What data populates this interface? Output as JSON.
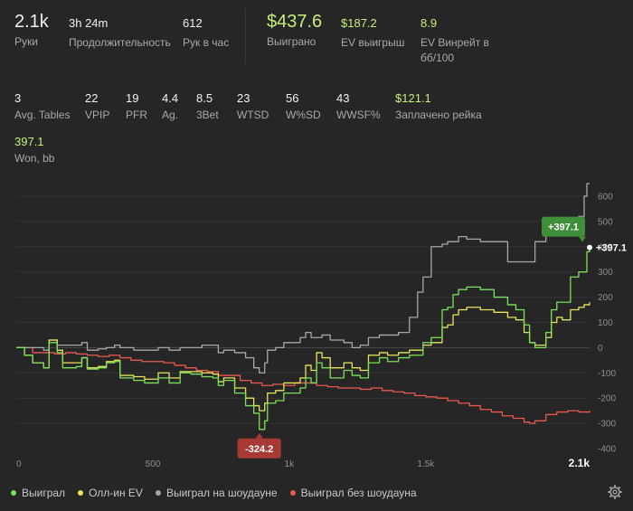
{
  "summary": {
    "hands": {
      "value": "2.1k",
      "label": "Руки"
    },
    "duration": {
      "value": "3h 24m",
      "label": "Продолжительность"
    },
    "hands_per_hour": {
      "value": "612",
      "label": "Рук в час"
    },
    "won": {
      "value": "$437.6",
      "label": "Выиграно"
    },
    "ev_won": {
      "value": "$187.2",
      "label": "EV выигрыш"
    },
    "ev_winrate": {
      "value": "8.9",
      "label": "EV Винрейт в бб/100"
    }
  },
  "stats": [
    {
      "value": "3",
      "label": "Avg. Tables"
    },
    {
      "value": "22",
      "label": "VPIP"
    },
    {
      "value": "19",
      "label": "PFR"
    },
    {
      "value": "4.4",
      "label": "Ag."
    },
    {
      "value": "8.5",
      "label": "3Bet"
    },
    {
      "value": "23",
      "label": "WTSD"
    },
    {
      "value": "56",
      "label": "W%SD"
    },
    {
      "value": "43",
      "label": "WWSF%"
    },
    {
      "value": "$121.1",
      "label": "Заплачено рейка"
    }
  ],
  "won_bb": {
    "value": "397.1",
    "label": "Won, bb"
  },
  "colors": {
    "green": "#7be05a",
    "yellow": "#e9e35c",
    "gray": "#a8a8a8",
    "red": "#e85a4f",
    "badge_green": "#3f8f3a",
    "badge_red": "#a83a36"
  },
  "chart_data": {
    "type": "line",
    "xlabel": "",
    "ylabel": "",
    "xlim": [
      0,
      2100
    ],
    "ylim": [
      -400,
      650
    ],
    "x_ticks": [
      "0",
      "500",
      "1k",
      "1.5k",
      "2.1k"
    ],
    "x_tick_values": [
      0,
      500,
      1000,
      1500,
      2100
    ],
    "y_ticks": [
      "600",
      "500",
      "400",
      "300",
      "200",
      "100",
      "0",
      "-100",
      "-200",
      "-300",
      "-400"
    ],
    "y_tick_values": [
      600,
      500,
      400,
      300,
      200,
      100,
      0,
      -100,
      -200,
      -300,
      -400
    ],
    "grid": true,
    "legend": "bottom",
    "annotations": {
      "max_label": "+397.1",
      "min_label": "-324.2",
      "end_label": "+397.1"
    },
    "series": [
      {
        "name": "Выиграл",
        "color": "green",
        "points": [
          [
            0,
            0
          ],
          [
            30,
            -30
          ],
          [
            60,
            -60
          ],
          [
            100,
            -80
          ],
          [
            120,
            20
          ],
          [
            150,
            -20
          ],
          [
            170,
            -80
          ],
          [
            220,
            -75
          ],
          [
            240,
            -40
          ],
          [
            260,
            -85
          ],
          [
            300,
            -80
          ],
          [
            330,
            -60
          ],
          [
            360,
            -55
          ],
          [
            380,
            -120
          ],
          [
            430,
            -130
          ],
          [
            470,
            -140
          ],
          [
            520,
            -120
          ],
          [
            560,
            -140
          ],
          [
            600,
            -100
          ],
          [
            640,
            -105
          ],
          [
            680,
            -115
          ],
          [
            720,
            -120
          ],
          [
            740,
            -150
          ],
          [
            760,
            -130
          ],
          [
            800,
            -180
          ],
          [
            840,
            -230
          ],
          [
            870,
            -260
          ],
          [
            890,
            -324
          ],
          [
            910,
            -290
          ],
          [
            920,
            -220
          ],
          [
            950,
            -210
          ],
          [
            980,
            -180
          ],
          [
            1040,
            -160
          ],
          [
            1060,
            -120
          ],
          [
            1080,
            -140
          ],
          [
            1100,
            -60
          ],
          [
            1120,
            -80
          ],
          [
            1150,
            -120
          ],
          [
            1200,
            -90
          ],
          [
            1230,
            -110
          ],
          [
            1260,
            -120
          ],
          [
            1290,
            -60
          ],
          [
            1330,
            -40
          ],
          [
            1360,
            -55
          ],
          [
            1400,
            -40
          ],
          [
            1440,
            -30
          ],
          [
            1470,
            -30
          ],
          [
            1490,
            20
          ],
          [
            1520,
            40
          ],
          [
            1560,
            150
          ],
          [
            1580,
            160
          ],
          [
            1600,
            210
          ],
          [
            1620,
            230
          ],
          [
            1650,
            240
          ],
          [
            1700,
            230
          ],
          [
            1750,
            200
          ],
          [
            1800,
            170
          ],
          [
            1830,
            150
          ],
          [
            1860,
            90
          ],
          [
            1880,
            20
          ],
          [
            1900,
            0
          ],
          [
            1940,
            60
          ],
          [
            1960,
            150
          ],
          [
            1980,
            180
          ],
          [
            2000,
            180
          ],
          [
            2030,
            280
          ],
          [
            2060,
            300
          ],
          [
            2080,
            300
          ],
          [
            2090,
            380
          ],
          [
            2100,
            397
          ]
        ]
      },
      {
        "name": "Олл-ин EV",
        "color": "yellow",
        "points": [
          [
            0,
            0
          ],
          [
            30,
            -30
          ],
          [
            60,
            -60
          ],
          [
            100,
            -80
          ],
          [
            120,
            30
          ],
          [
            150,
            -10
          ],
          [
            170,
            -60
          ],
          [
            220,
            -60
          ],
          [
            240,
            -40
          ],
          [
            260,
            -80
          ],
          [
            300,
            -75
          ],
          [
            330,
            -55
          ],
          [
            360,
            -50
          ],
          [
            380,
            -110
          ],
          [
            430,
            -115
          ],
          [
            470,
            -125
          ],
          [
            520,
            -100
          ],
          [
            560,
            -120
          ],
          [
            600,
            -95
          ],
          [
            640,
            -95
          ],
          [
            680,
            -100
          ],
          [
            720,
            -105
          ],
          [
            740,
            -135
          ],
          [
            760,
            -120
          ],
          [
            800,
            -160
          ],
          [
            840,
            -200
          ],
          [
            870,
            -230
          ],
          [
            890,
            -250
          ],
          [
            910,
            -220
          ],
          [
            920,
            -180
          ],
          [
            950,
            -170
          ],
          [
            980,
            -140
          ],
          [
            1040,
            -120
          ],
          [
            1060,
            -70
          ],
          [
            1080,
            -90
          ],
          [
            1100,
            -20
          ],
          [
            1120,
            -40
          ],
          [
            1150,
            -80
          ],
          [
            1200,
            -60
          ],
          [
            1230,
            -80
          ],
          [
            1260,
            -90
          ],
          [
            1290,
            -30
          ],
          [
            1330,
            -20
          ],
          [
            1360,
            -30
          ],
          [
            1400,
            -20
          ],
          [
            1440,
            -10
          ],
          [
            1470,
            -10
          ],
          [
            1490,
            10
          ],
          [
            1520,
            20
          ],
          [
            1560,
            80
          ],
          [
            1580,
            90
          ],
          [
            1600,
            130
          ],
          [
            1620,
            150
          ],
          [
            1650,
            160
          ],
          [
            1700,
            150
          ],
          [
            1750,
            140
          ],
          [
            1800,
            120
          ],
          [
            1830,
            110
          ],
          [
            1860,
            60
          ],
          [
            1880,
            20
          ],
          [
            1900,
            10
          ],
          [
            1940,
            40
          ],
          [
            1960,
            100
          ],
          [
            1980,
            120
          ],
          [
            2000,
            110
          ],
          [
            2030,
            150
          ],
          [
            2060,
            160
          ],
          [
            2080,
            170
          ],
          [
            2100,
            180
          ]
        ]
      },
      {
        "name": "Выиграл на шоудауне",
        "color": "gray",
        "points": [
          [
            0,
            0
          ],
          [
            30,
            0
          ],
          [
            60,
            0
          ],
          [
            100,
            -10
          ],
          [
            120,
            30
          ],
          [
            150,
            10
          ],
          [
            170,
            10
          ],
          [
            220,
            10
          ],
          [
            240,
            20
          ],
          [
            260,
            -10
          ],
          [
            300,
            -5
          ],
          [
            330,
            0
          ],
          [
            360,
            10
          ],
          [
            380,
            0
          ],
          [
            430,
            -10
          ],
          [
            470,
            -10
          ],
          [
            520,
            0
          ],
          [
            560,
            -10
          ],
          [
            600,
            0
          ],
          [
            640,
            0
          ],
          [
            680,
            10
          ],
          [
            720,
            10
          ],
          [
            740,
            -20
          ],
          [
            760,
            -10
          ],
          [
            800,
            -20
          ],
          [
            840,
            -40
          ],
          [
            870,
            -80
          ],
          [
            890,
            -100
          ],
          [
            910,
            -60
          ],
          [
            920,
            -10
          ],
          [
            950,
            0
          ],
          [
            980,
            20
          ],
          [
            1040,
            40
          ],
          [
            1060,
            60
          ],
          [
            1080,
            40
          ],
          [
            1100,
            40
          ],
          [
            1120,
            50
          ],
          [
            1150,
            30
          ],
          [
            1200,
            20
          ],
          [
            1230,
            0
          ],
          [
            1260,
            10
          ],
          [
            1290,
            40
          ],
          [
            1330,
            50
          ],
          [
            1360,
            50
          ],
          [
            1400,
            60
          ],
          [
            1440,
            120
          ],
          [
            1470,
            220
          ],
          [
            1490,
            280
          ],
          [
            1520,
            400
          ],
          [
            1560,
            410
          ],
          [
            1580,
            420
          ],
          [
            1600,
            420
          ],
          [
            1620,
            440
          ],
          [
            1650,
            430
          ],
          [
            1700,
            420
          ],
          [
            1750,
            420
          ],
          [
            1800,
            340
          ],
          [
            1830,
            340
          ],
          [
            1860,
            340
          ],
          [
            1880,
            340
          ],
          [
            1900,
            420
          ],
          [
            1940,
            470
          ],
          [
            1960,
            470
          ],
          [
            1980,
            480
          ],
          [
            2000,
            480
          ],
          [
            2030,
            500
          ],
          [
            2060,
            520
          ],
          [
            2080,
            600
          ],
          [
            2090,
            650
          ],
          [
            2100,
            650
          ]
        ]
      },
      {
        "name": "Выиграл без шоудауна",
        "color": "red",
        "points": [
          [
            0,
            0
          ],
          [
            60,
            -20
          ],
          [
            100,
            -20
          ],
          [
            140,
            -25
          ],
          [
            180,
            -20
          ],
          [
            220,
            -25
          ],
          [
            260,
            -30
          ],
          [
            300,
            -35
          ],
          [
            340,
            -30
          ],
          [
            380,
            -40
          ],
          [
            420,
            -50
          ],
          [
            460,
            -55
          ],
          [
            500,
            -55
          ],
          [
            540,
            -60
          ],
          [
            580,
            -70
          ],
          [
            620,
            -80
          ],
          [
            660,
            -90
          ],
          [
            700,
            -95
          ],
          [
            740,
            -110
          ],
          [
            780,
            -110
          ],
          [
            820,
            -130
          ],
          [
            860,
            -140
          ],
          [
            900,
            -150
          ],
          [
            940,
            -145
          ],
          [
            980,
            -150
          ],
          [
            1020,
            -140
          ],
          [
            1060,
            -140
          ],
          [
            1100,
            -150
          ],
          [
            1140,
            -155
          ],
          [
            1180,
            -160
          ],
          [
            1220,
            -160
          ],
          [
            1260,
            -165
          ],
          [
            1300,
            -160
          ],
          [
            1340,
            -170
          ],
          [
            1380,
            -175
          ],
          [
            1420,
            -180
          ],
          [
            1460,
            -190
          ],
          [
            1500,
            -195
          ],
          [
            1540,
            -200
          ],
          [
            1580,
            -210
          ],
          [
            1620,
            -220
          ],
          [
            1660,
            -230
          ],
          [
            1700,
            -245
          ],
          [
            1740,
            -255
          ],
          [
            1780,
            -270
          ],
          [
            1820,
            -280
          ],
          [
            1860,
            -295
          ],
          [
            1880,
            -300
          ],
          [
            1900,
            -290
          ],
          [
            1940,
            -265
          ],
          [
            1980,
            -255
          ],
          [
            2020,
            -250
          ],
          [
            2060,
            -255
          ],
          [
            2100,
            -250
          ]
        ]
      }
    ]
  }
}
